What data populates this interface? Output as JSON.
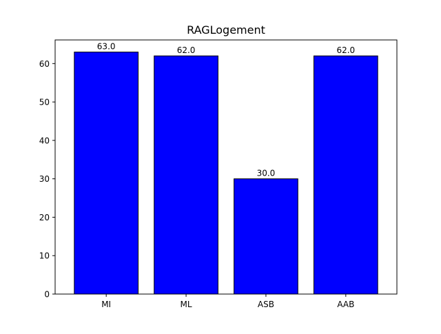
{
  "chart_data": {
    "type": "bar",
    "title": "RAGLogement",
    "xlabel": "",
    "ylabel": "",
    "categories": [
      "MI",
      "ML",
      "ASB",
      "AAB"
    ],
    "values": [
      63.0,
      62.0,
      30.0,
      62.0
    ],
    "data_labels": [
      "63.0",
      "62.0",
      "30.0",
      "62.0"
    ],
    "yticks": [
      0,
      10,
      20,
      30,
      40,
      50,
      60
    ],
    "ylim": [
      0,
      66.15
    ],
    "bar_color": "#0000ff",
    "edge_color": "#000000",
    "grid": false,
    "legend": "none"
  }
}
